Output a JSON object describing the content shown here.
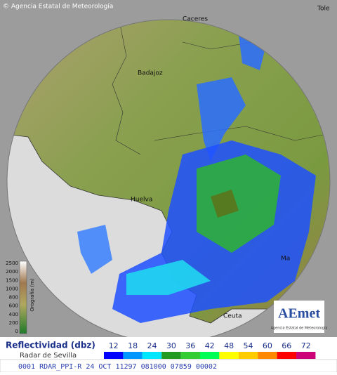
{
  "header": {
    "copyright": "© Agencia Estatal de Meteorología"
  },
  "cities": [
    {
      "label": "Caceres"
    },
    {
      "label": "Tole"
    },
    {
      "label": "Badajoz"
    },
    {
      "label": "Huelva"
    },
    {
      "label": "Ceuta"
    },
    {
      "label": "Ma"
    }
  ],
  "orography": {
    "title": "Orografía (m)",
    "ticks": [
      "2500",
      "2000",
      "1500",
      "1000",
      "800",
      "600",
      "400",
      "200",
      "0"
    ]
  },
  "logo": {
    "name": "AEmet",
    "subtitle": "Agencia Estatal de Meteorología"
  },
  "legend": {
    "title": "Reflectividad (dbz)",
    "subtitle": "Radar de Sevilla",
    "items": [
      {
        "label": "12",
        "color": "#0000ff"
      },
      {
        "label": "18",
        "color": "#0096ff"
      },
      {
        "label": "24",
        "color": "#00e6ff"
      },
      {
        "label": "30",
        "color": "#229922"
      },
      {
        "label": "36",
        "color": "#33cc33"
      },
      {
        "label": "42",
        "color": "#00ff55"
      },
      {
        "label": "48",
        "color": "#ffff00"
      },
      {
        "label": "54",
        "color": "#ffcc00"
      },
      {
        "label": "60",
        "color": "#ff8800"
      },
      {
        "label": "66",
        "color": "#ff0000"
      },
      {
        "label": "72",
        "color": "#cc0077"
      }
    ]
  },
  "status": {
    "text": "0001 RDAR_PPI-R  24 OCT 11297 081000 07859 00002"
  }
}
